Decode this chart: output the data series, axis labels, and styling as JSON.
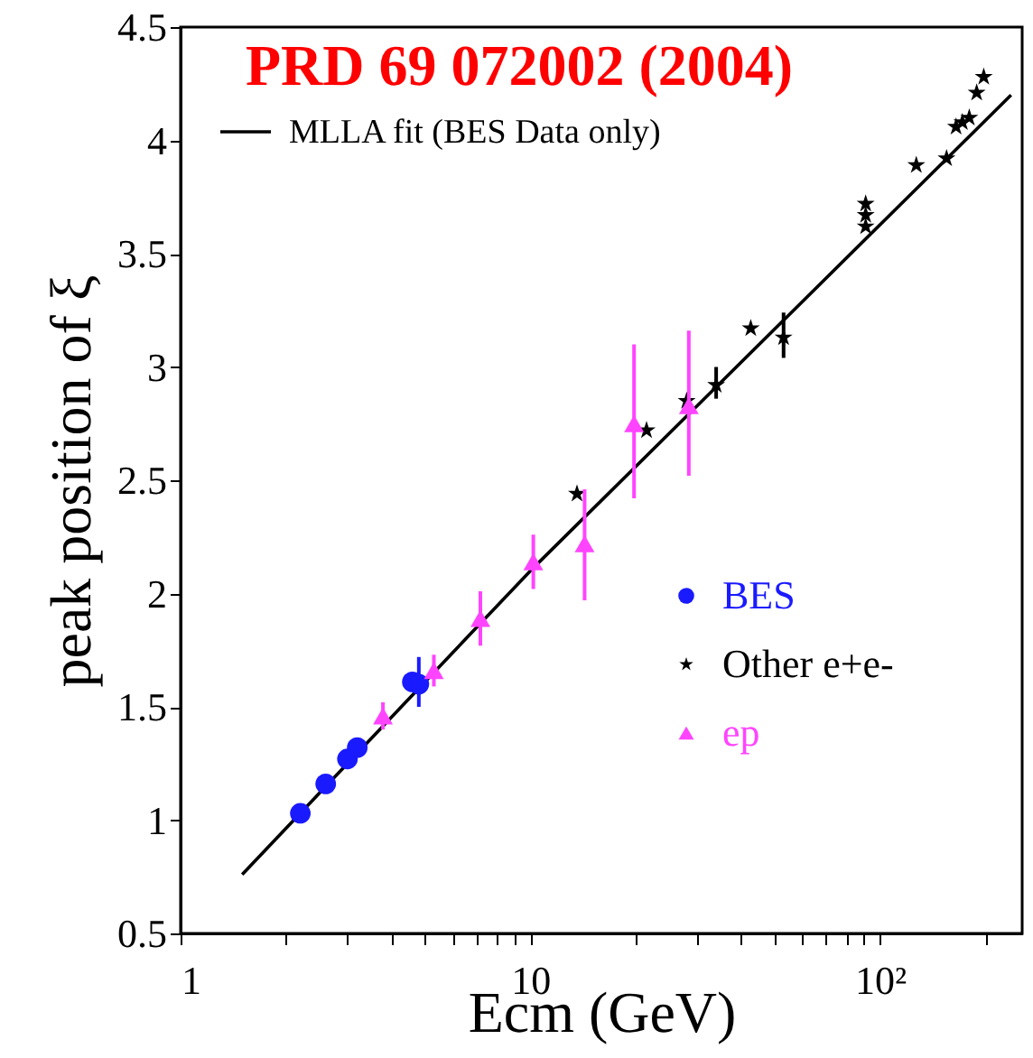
{
  "chart_data": {
    "type": "scatter",
    "title": "PRD 69 072002 (2004)",
    "xlabel": "Ecm (GeV)",
    "ylabel": "peak position of ξ",
    "log": "x",
    "grid": false,
    "legend": "top left",
    "xlim": [
      1,
      255
    ],
    "ylim": [
      0.5,
      4.5
    ],
    "xticks": [
      1,
      {
        "value": 2,
        "label": null
      },
      {
        "value": 3,
        "label": null
      },
      {
        "value": 4,
        "label": null
      },
      {
        "value": 5,
        "label": null
      },
      {
        "value": 6,
        "label": null
      },
      {
        "value": 7,
        "label": null
      },
      {
        "value": 8,
        "label": null
      },
      {
        "value": 9,
        "label": null
      },
      10,
      {
        "value": 20,
        "label": null
      },
      {
        "value": 30,
        "label": null
      },
      {
        "value": 40,
        "label": null
      },
      {
        "value": 50,
        "label": null
      },
      {
        "value": 60,
        "label": null
      },
      {
        "value": 70,
        "label": null
      },
      {
        "value": 80,
        "label": null
      },
      {
        "value": 90,
        "label": null
      },
      {
        "value": 100,
        "label": "10²"
      },
      {
        "value": 200,
        "label": null
      }
    ],
    "yticks": [
      0.5,
      1,
      1.5,
      2,
      2.5,
      3,
      3.5,
      4,
      4.5
    ],
    "series": [
      {
        "name": "MLLA fit (BES Data only)",
        "type": "line",
        "color": "#000000",
        "marker": "none",
        "x": [
          1.5,
          10,
          237
        ],
        "values": [
          0.76,
          2.1,
          4.2
        ]
      },
      {
        "name": "BES",
        "color": "#1a1aff",
        "marker": "circle",
        "x": [
          2.2,
          2.6,
          3.0,
          3.2,
          4.6,
          4.8
        ],
        "values": [
          1.03,
          1.16,
          1.27,
          1.32,
          1.61,
          1.6
        ],
        "errors": [
          null,
          null,
          null,
          null,
          null,
          [
            1.5,
            1.72
          ]
        ]
      },
      {
        "name": "Other e+e-",
        "color": "#000000",
        "marker": "star",
        "x": [
          13.6,
          21.5,
          28,
          34,
          42.7,
          53,
          91,
          91,
          91,
          127,
          155,
          165,
          172,
          180,
          189,
          198
        ],
        "values": [
          2.44,
          2.72,
          2.85,
          2.92,
          3.17,
          3.13,
          3.72,
          3.67,
          3.62,
          3.89,
          3.92,
          4.06,
          4.08,
          4.1,
          4.21,
          4.28
        ],
        "errors": [
          null,
          null,
          null,
          [
            2.86,
            3.0
          ],
          null,
          [
            3.04,
            3.24
          ],
          null,
          null,
          null,
          null,
          null,
          null,
          null,
          null,
          null,
          null
        ]
      },
      {
        "name": "ep",
        "color": "#ff44ff",
        "marker": "triangle",
        "x": [
          3.79,
          5.3,
          7.2,
          10.2,
          14.3,
          19.8,
          28.4
        ],
        "values": [
          1.46,
          1.66,
          1.89,
          2.14,
          2.22,
          2.75,
          2.83
        ],
        "errors": [
          0.06,
          0.07,
          0.12,
          0.12,
          [
            1.97,
            2.46
          ],
          [
            2.42,
            3.1
          ],
          [
            2.52,
            3.16
          ]
        ]
      }
    ]
  }
}
